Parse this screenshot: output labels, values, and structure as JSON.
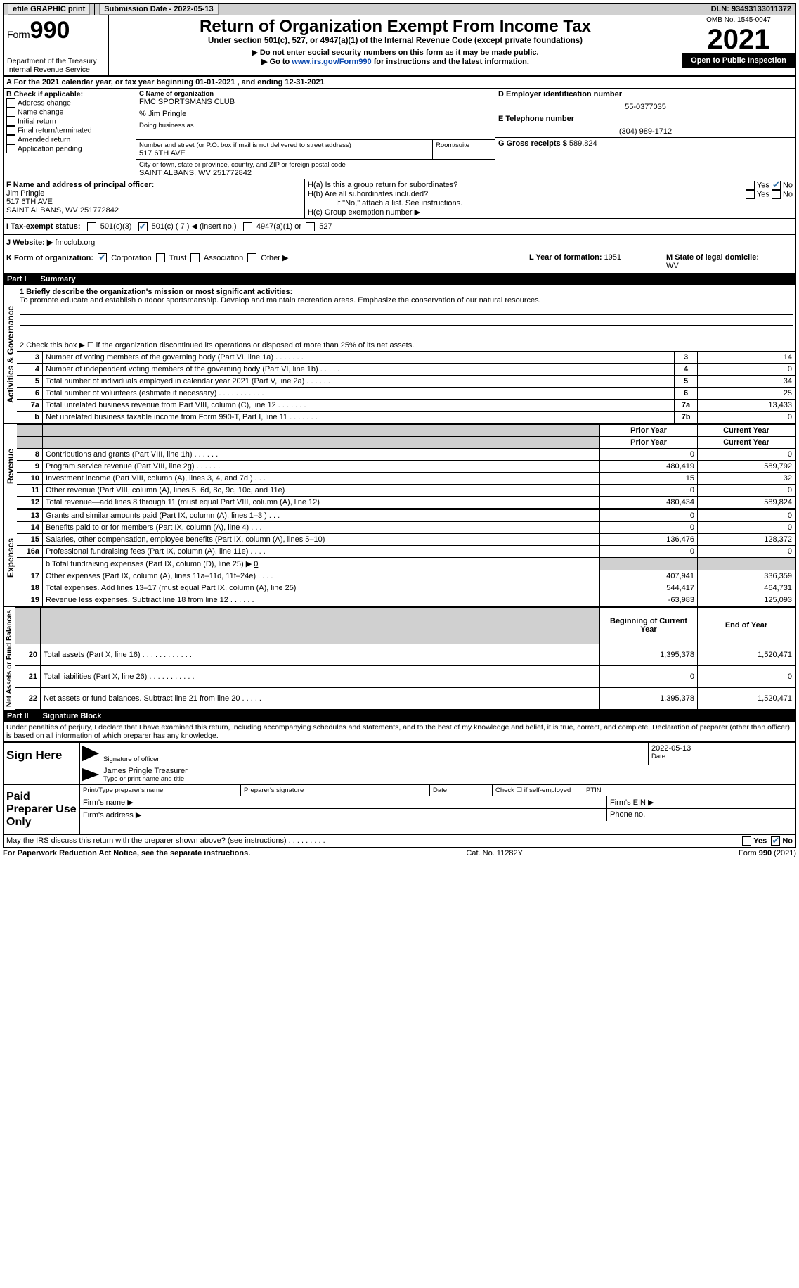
{
  "topbar": {
    "efile_label": "efile GRAPHIC print",
    "submission_label": "Submission Date - 2022-05-13",
    "dln_label": "DLN: 93493133011372"
  },
  "header": {
    "form_word": "Form",
    "form_num": "990",
    "dept": "Department of the Treasury Internal Revenue Service",
    "title": "Return of Organization Exempt From Income Tax",
    "subtitle": "Under section 501(c), 527, or 4947(a)(1) of the Internal Revenue Code (except private foundations)",
    "note1": "▶ Do not enter social security numbers on this form as it may be made public.",
    "note2_pre": "▶ Go to ",
    "note2_link": "www.irs.gov/Form990",
    "note2_post": " for instructions and the latest information.",
    "omb": "OMB No. 1545-0047",
    "year": "2021",
    "inspection": "Open to Public Inspection"
  },
  "lineA": "A For the 2021 calendar year, or tax year beginning 01-01-2021    , and ending 12-31-2021",
  "sectionB": {
    "label": "B Check if applicable:",
    "opts": [
      "Address change",
      "Name change",
      "Initial return",
      "Final return/terminated",
      "Amended return",
      "Application pending"
    ]
  },
  "sectionC": {
    "name_label": "C Name of organization",
    "name": "FMC SPORTSMANS CLUB",
    "care_of": "% Jim Pringle",
    "dba_label": "Doing business as",
    "street_label": "Number and street (or P.O. box if mail is not delivered to street address)",
    "room_label": "Room/suite",
    "street": "517 6TH AVE",
    "city_label": "City or town, state or province, country, and ZIP or foreign postal code",
    "city": "SAINT ALBANS, WV  251772842"
  },
  "sectionD": {
    "ein_label": "D Employer identification number",
    "ein": "55-0377035",
    "phone_label": "E Telephone number",
    "phone": "(304) 989-1712",
    "gross_label": "G Gross receipts $ ",
    "gross": "589,824"
  },
  "sectionF": {
    "label": "F  Name and address of principal officer:",
    "name": "Jim Pringle",
    "addr1": "517 6TH AVE",
    "addr2": "SAINT ALBANS, WV  251772842"
  },
  "sectionH": {
    "a_label": "H(a)  Is this a group return for subordinates?",
    "b_label": "H(b)  Are all subordinates included?",
    "b_note": "If \"No,\" attach a list. See instructions.",
    "c_label": "H(c)  Group exemption number ▶"
  },
  "sectionI": {
    "label": "I    Tax-exempt status:",
    "opt1": "501(c)(3)",
    "opt2": "501(c) ( 7 ) ◀ (insert no.)",
    "opt3": "4947(a)(1) or",
    "opt4": "527"
  },
  "sectionJ": {
    "label": "J   Website: ▶ ",
    "val": "fmcclub.org"
  },
  "sectionK": {
    "label": "K Form of organization:",
    "opts": [
      "Corporation",
      "Trust",
      "Association",
      "Other ▶"
    ]
  },
  "sectionL": {
    "label": "L Year of formation: ",
    "val": "1951"
  },
  "sectionM": {
    "label": "M State of legal domicile: ",
    "val": "WV"
  },
  "part1": {
    "hdr_num": "Part I",
    "hdr_txt": "Summary",
    "vlabels": {
      "ag": "Activities & Governance",
      "rev": "Revenue",
      "exp": "Expenses",
      "nafb": "Net Assets or Fund Balances"
    },
    "line1_label": "1   Briefly describe the organization's mission or most significant activities:",
    "mission": "To promote educate and establish outdoor sportsmanship. Develop and maintain recreation areas. Emphasize the conservation of our natural resources.",
    "line2": "2    Check this box ▶ ☐  if the organization discontinued its operations or disposed of more than 25% of its net assets.",
    "rows_ag": [
      {
        "n": "3",
        "desc": "Number of voting members of the governing body (Part VI, line 1a)   .    .    .    .    .    .    .",
        "box": "3",
        "val": "14"
      },
      {
        "n": "4",
        "desc": "Number of independent voting members of the governing body (Part VI, line 1b)   .    .    .    .    .",
        "box": "4",
        "val": "0"
      },
      {
        "n": "5",
        "desc": "Total number of individuals employed in calendar year 2021 (Part V, line 2a)   .    .    .    .    .    .",
        "box": "5",
        "val": "34"
      },
      {
        "n": "6",
        "desc": "Total number of volunteers (estimate if necessary)    .    .    .    .    .    .    .    .    .    .    .",
        "box": "6",
        "val": "25"
      },
      {
        "n": "7a",
        "desc": "Total unrelated business revenue from Part VIII, column (C), line 12   .    .    .    .    .    .    .",
        "box": "7a",
        "val": "13,433"
      },
      {
        "n": "b",
        "desc": "Net unrelated business taxable income from Form 990-T, Part I, line 11   .    .    .    .    .    .    .",
        "box": "7b",
        "val": "0"
      }
    ],
    "py_hdr": "Prior Year",
    "cy_hdr": "Current Year",
    "rows_rev": [
      {
        "n": "8",
        "desc": "Contributions and grants (Part VIII, line 1h)   .    .    .    .    .    .",
        "py": "0",
        "cy": "0"
      },
      {
        "n": "9",
        "desc": "Program service revenue (Part VIII, line 2g)   .    .    .    .    .    .",
        "py": "480,419",
        "cy": "589,792"
      },
      {
        "n": "10",
        "desc": "Investment income (Part VIII, column (A), lines 3, 4, and 7d )   .    .    .",
        "py": "15",
        "cy": "32"
      },
      {
        "n": "11",
        "desc": "Other revenue (Part VIII, column (A), lines 5, 6d, 8c, 9c, 10c, and 11e)",
        "py": "0",
        "cy": "0"
      },
      {
        "n": "12",
        "desc": "Total revenue—add lines 8 through 11 (must equal Part VIII, column (A), line 12)",
        "py": "480,434",
        "cy": "589,824"
      }
    ],
    "rows_exp": [
      {
        "n": "13",
        "desc": "Grants and similar amounts paid (Part IX, column (A), lines 1–3 )   .    .    .",
        "py": "0",
        "cy": "0"
      },
      {
        "n": "14",
        "desc": "Benefits paid to or for members (Part IX, column (A), line 4)   .    .    .",
        "py": "0",
        "cy": "0"
      },
      {
        "n": "15",
        "desc": "Salaries, other compensation, employee benefits (Part IX, column (A), lines 5–10)",
        "py": "136,476",
        "cy": "128,372"
      },
      {
        "n": "16a",
        "desc": "Professional fundraising fees (Part IX, column (A), line 11e)   .    .    .    .",
        "py": "0",
        "cy": "0"
      }
    ],
    "line16b": "b   Total fundraising expenses (Part IX, column (D), line 25) ▶",
    "line16b_val": "0",
    "rows_exp2": [
      {
        "n": "17",
        "desc": "Other expenses (Part IX, column (A), lines 11a–11d, 11f–24e)   .    .    .    .",
        "py": "407,941",
        "cy": "336,359"
      },
      {
        "n": "18",
        "desc": "Total expenses. Add lines 13–17 (must equal Part IX, column (A), line 25)",
        "py": "544,417",
        "cy": "464,731"
      },
      {
        "n": "19",
        "desc": "Revenue less expenses. Subtract line 18 from line 12   .    .    .    .    .    .",
        "py": "-63,983",
        "cy": "125,093"
      }
    ],
    "bcy_hdr": "Beginning of Current Year",
    "ey_hdr": "End of Year",
    "rows_na": [
      {
        "n": "20",
        "desc": "Total assets (Part X, line 16)   .    .    .    .    .    .    .    .    .    .    .    .",
        "py": "1,395,378",
        "cy": "1,520,471"
      },
      {
        "n": "21",
        "desc": "Total liabilities (Part X, line 26)   .    .    .    .    .    .    .    .    .    .    .",
        "py": "0",
        "cy": "0"
      },
      {
        "n": "22",
        "desc": "Net assets or fund balances. Subtract line 21 from line 20   .    .    .    .    .",
        "py": "1,395,378",
        "cy": "1,520,471"
      }
    ]
  },
  "part2": {
    "hdr_num": "Part II",
    "hdr_txt": "Signature Block",
    "perjury": "Under penalties of perjury, I declare that I have examined this return, including accompanying schedules and statements, and to the best of my knowledge and belief, it is true, correct, and complete. Declaration of preparer (other than officer) is based on all information of which preparer has any knowledge.",
    "sign_here": "Sign Here",
    "sig_officer": "Signature of officer",
    "sig_date": "2022-05-13",
    "date_lbl": "Date",
    "officer_name": "James Pringle  Treasurer",
    "name_title_lbl": "Type or print name and title",
    "paid_prep": "Paid Preparer Use Only",
    "prep_name_lbl": "Print/Type preparer's name",
    "prep_sig_lbl": "Preparer's signature",
    "prep_date_lbl": "Date",
    "prep_check_lbl": "Check ☐ if self-employed",
    "ptin_lbl": "PTIN",
    "firm_name": "Firm's name    ▶",
    "firm_ein": "Firm's EIN ▶",
    "firm_addr": "Firm's address ▶",
    "firm_phone": "Phone no."
  },
  "footer": {
    "discuss": "May the IRS discuss this return with the preparer shown above? (see instructions)   .    .    .    .    .    .    .    .    .",
    "yes": "Yes",
    "no": "No",
    "paperwork": "For Paperwork Reduction Act Notice, see the separate instructions.",
    "cat": "Cat. No. 11282Y",
    "formnote": "Form 990 (2021)"
  }
}
